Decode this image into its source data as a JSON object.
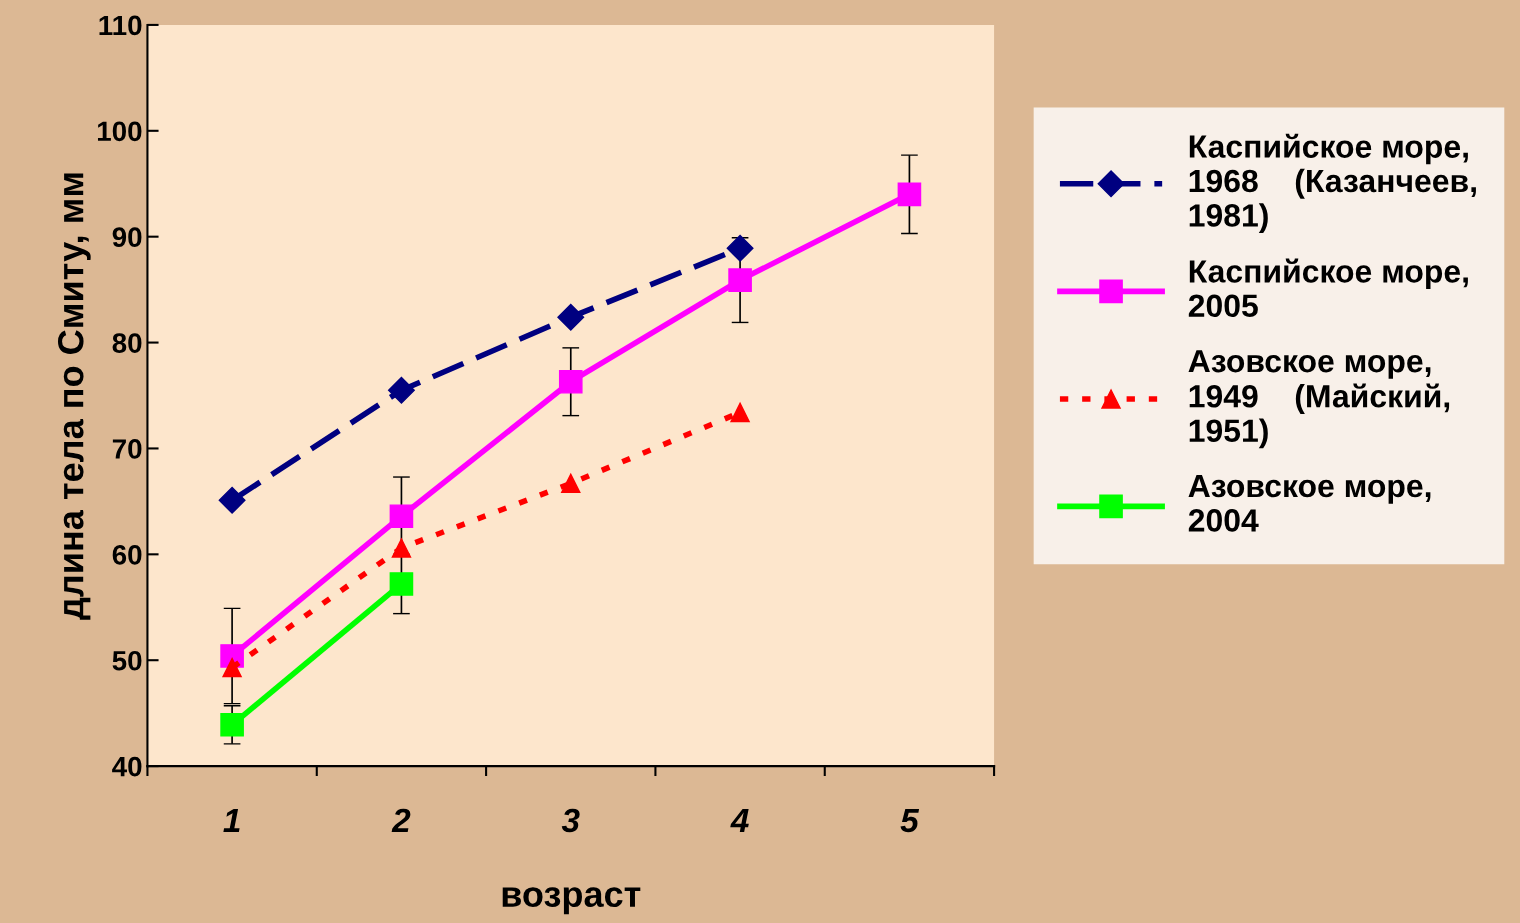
{
  "chart_data": {
    "type": "line",
    "xlabel": "возраст",
    "ylabel": "длина тела по Смиту, мм",
    "categories": [
      "1",
      "2",
      "3",
      "4",
      "5"
    ],
    "ylim": [
      40,
      110
    ],
    "yticks": [
      40,
      50,
      60,
      70,
      80,
      90,
      100,
      110
    ],
    "grid": false,
    "legend": "right",
    "series": [
      {
        "name": "Каспийское море,\n1968    (Казанчеев,\n1981)",
        "color": "#000080",
        "marker": "diamond",
        "line_style": "dashed",
        "values": [
          65.1,
          75.5,
          82.4,
          88.9,
          null
        ]
      },
      {
        "name": "Каспийское море,\n2005",
        "color": "#ff00ff",
        "marker": "square",
        "line_style": "solid",
        "values": [
          50.4,
          63.6,
          76.3,
          85.9,
          94.0
        ],
        "errors": [
          4.5,
          3.7,
          3.2,
          4.0,
          3.7
        ]
      },
      {
        "name": "Азовское море,\n1949    (Майский,\n1951)",
        "color": "#ff0000",
        "marker": "triangle",
        "line_style": "dotted",
        "values": [
          49.3,
          60.6,
          66.7,
          73.4,
          null
        ]
      },
      {
        "name": "Азовское море,\n2004",
        "color": "#00ff00",
        "marker": "square",
        "line_style": "solid",
        "values": [
          43.9,
          57.2,
          null,
          null,
          null
        ],
        "errors": [
          1.8,
          2.8,
          null,
          null,
          null
        ]
      }
    ]
  }
}
